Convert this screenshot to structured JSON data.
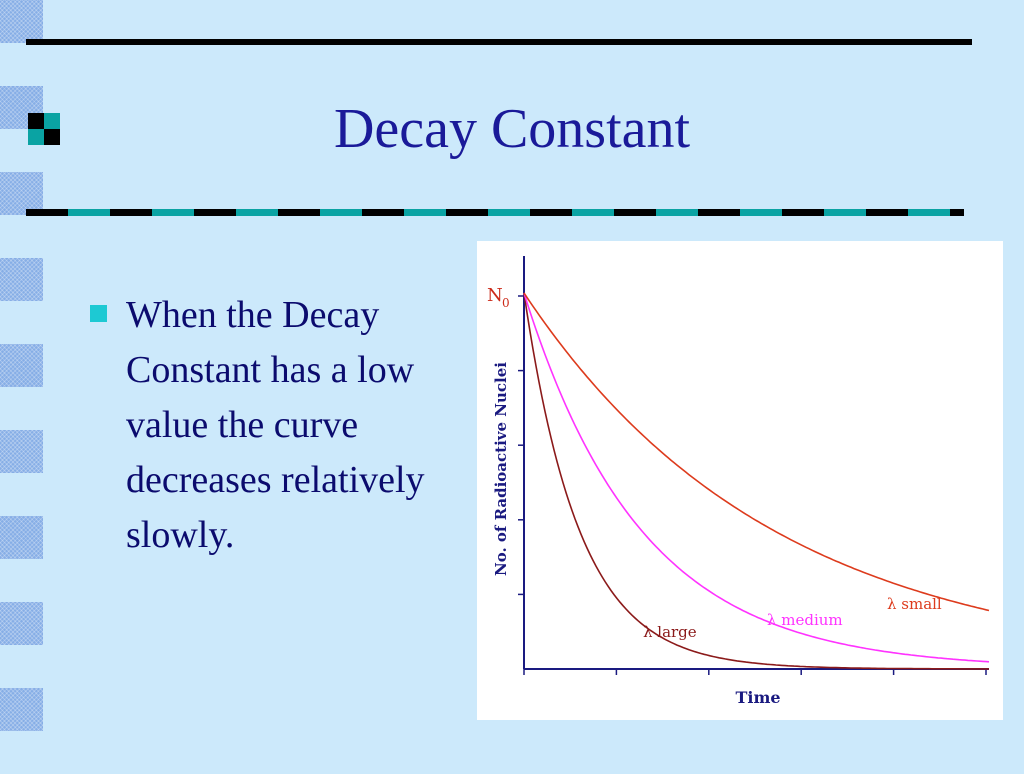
{
  "slide": {
    "title": "Decay Constant",
    "bullet_text": "When the Decay Constant has a low value the curve decreases relatively slowly."
  },
  "colors": {
    "background": "#cce9fb",
    "title": "#1a1a99",
    "text": "#0b0b6e",
    "bullet": "#1dc9d3",
    "rule_dark": "#000000",
    "rule_teal": "#0aa3a3"
  },
  "chart_data": {
    "type": "line",
    "y_origin_label": "N",
    "y_origin_subscript": "0",
    "xlabel": "Time",
    "ylabel": "No. of Radioactive Nuclei",
    "series": [
      {
        "name": "λ large",
        "color": "#8b1a1a",
        "decay_rate": 0.018
      },
      {
        "name": "λ medium",
        "color": "#ff33ff",
        "decay_rate": 0.0085
      },
      {
        "name": "λ small",
        "color": "#dd3b1d",
        "decay_rate": 0.004
      }
    ],
    "x_ticks": 5,
    "y_ticks": 5,
    "grid": false,
    "legend": "inline labels"
  }
}
